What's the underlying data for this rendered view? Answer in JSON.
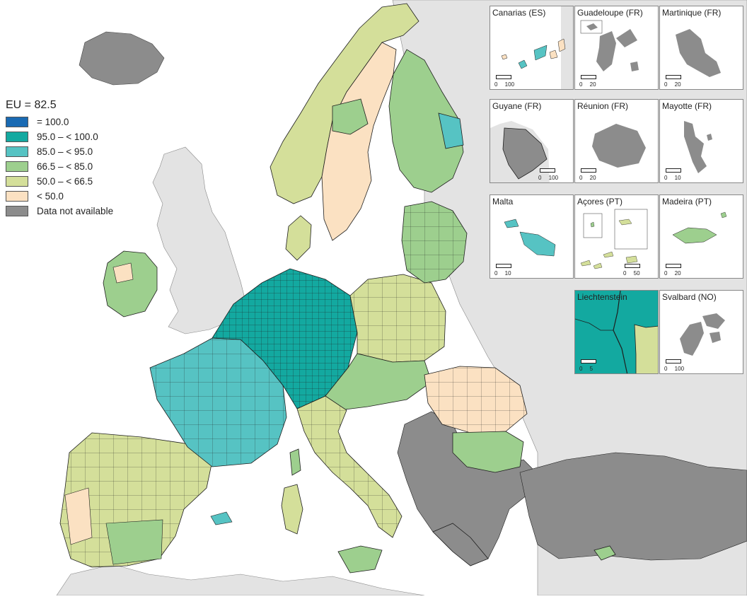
{
  "map": {
    "colors": {
      "sea": "#ffffff",
      "non_eu_land": "#e3e3e3",
      "no_data": "#8c8c8c",
      "borders": "#1e1e1e"
    },
    "legend": {
      "title": "EU = 82.5",
      "items": [
        {
          "label": "= 100.0",
          "color": "#1a6ab3"
        },
        {
          "label": "95.0 – < 100.0",
          "color": "#13a9a0"
        },
        {
          "label": "85.0 – < 95.0",
          "color": "#56c3c3"
        },
        {
          "label": "66.5 – < 85.0",
          "color": "#9dcf8e"
        },
        {
          "label": "50.0 – < 66.5",
          "color": "#d4df9a"
        },
        {
          "label": "< 50.0",
          "color": "#fbe1c2"
        },
        {
          "label": "Data not available",
          "color": "#8c8c8c"
        }
      ]
    },
    "insets": [
      {
        "label": "Canarias (ES)",
        "scale": "0 100"
      },
      {
        "label": "Guadeloupe (FR)",
        "scale": "0 20"
      },
      {
        "label": "Martinique (FR)",
        "scale": "0 20"
      },
      {
        "label": "Guyane (FR)",
        "scale": "0 100"
      },
      {
        "label": "Réunion (FR)",
        "scale": "0 20"
      },
      {
        "label": "Mayotte (FR)",
        "scale": "0 10"
      },
      {
        "label": "Malta",
        "scale": "0 10"
      },
      {
        "label": "Açores (PT)",
        "scale": "0 50"
      },
      {
        "label": "Madeira (PT)",
        "scale": "0 20"
      },
      {
        "label": "Liechtenstein",
        "scale": "0 5"
      },
      {
        "label": "Svalbard (NO)",
        "scale": "0 100"
      }
    ]
  }
}
